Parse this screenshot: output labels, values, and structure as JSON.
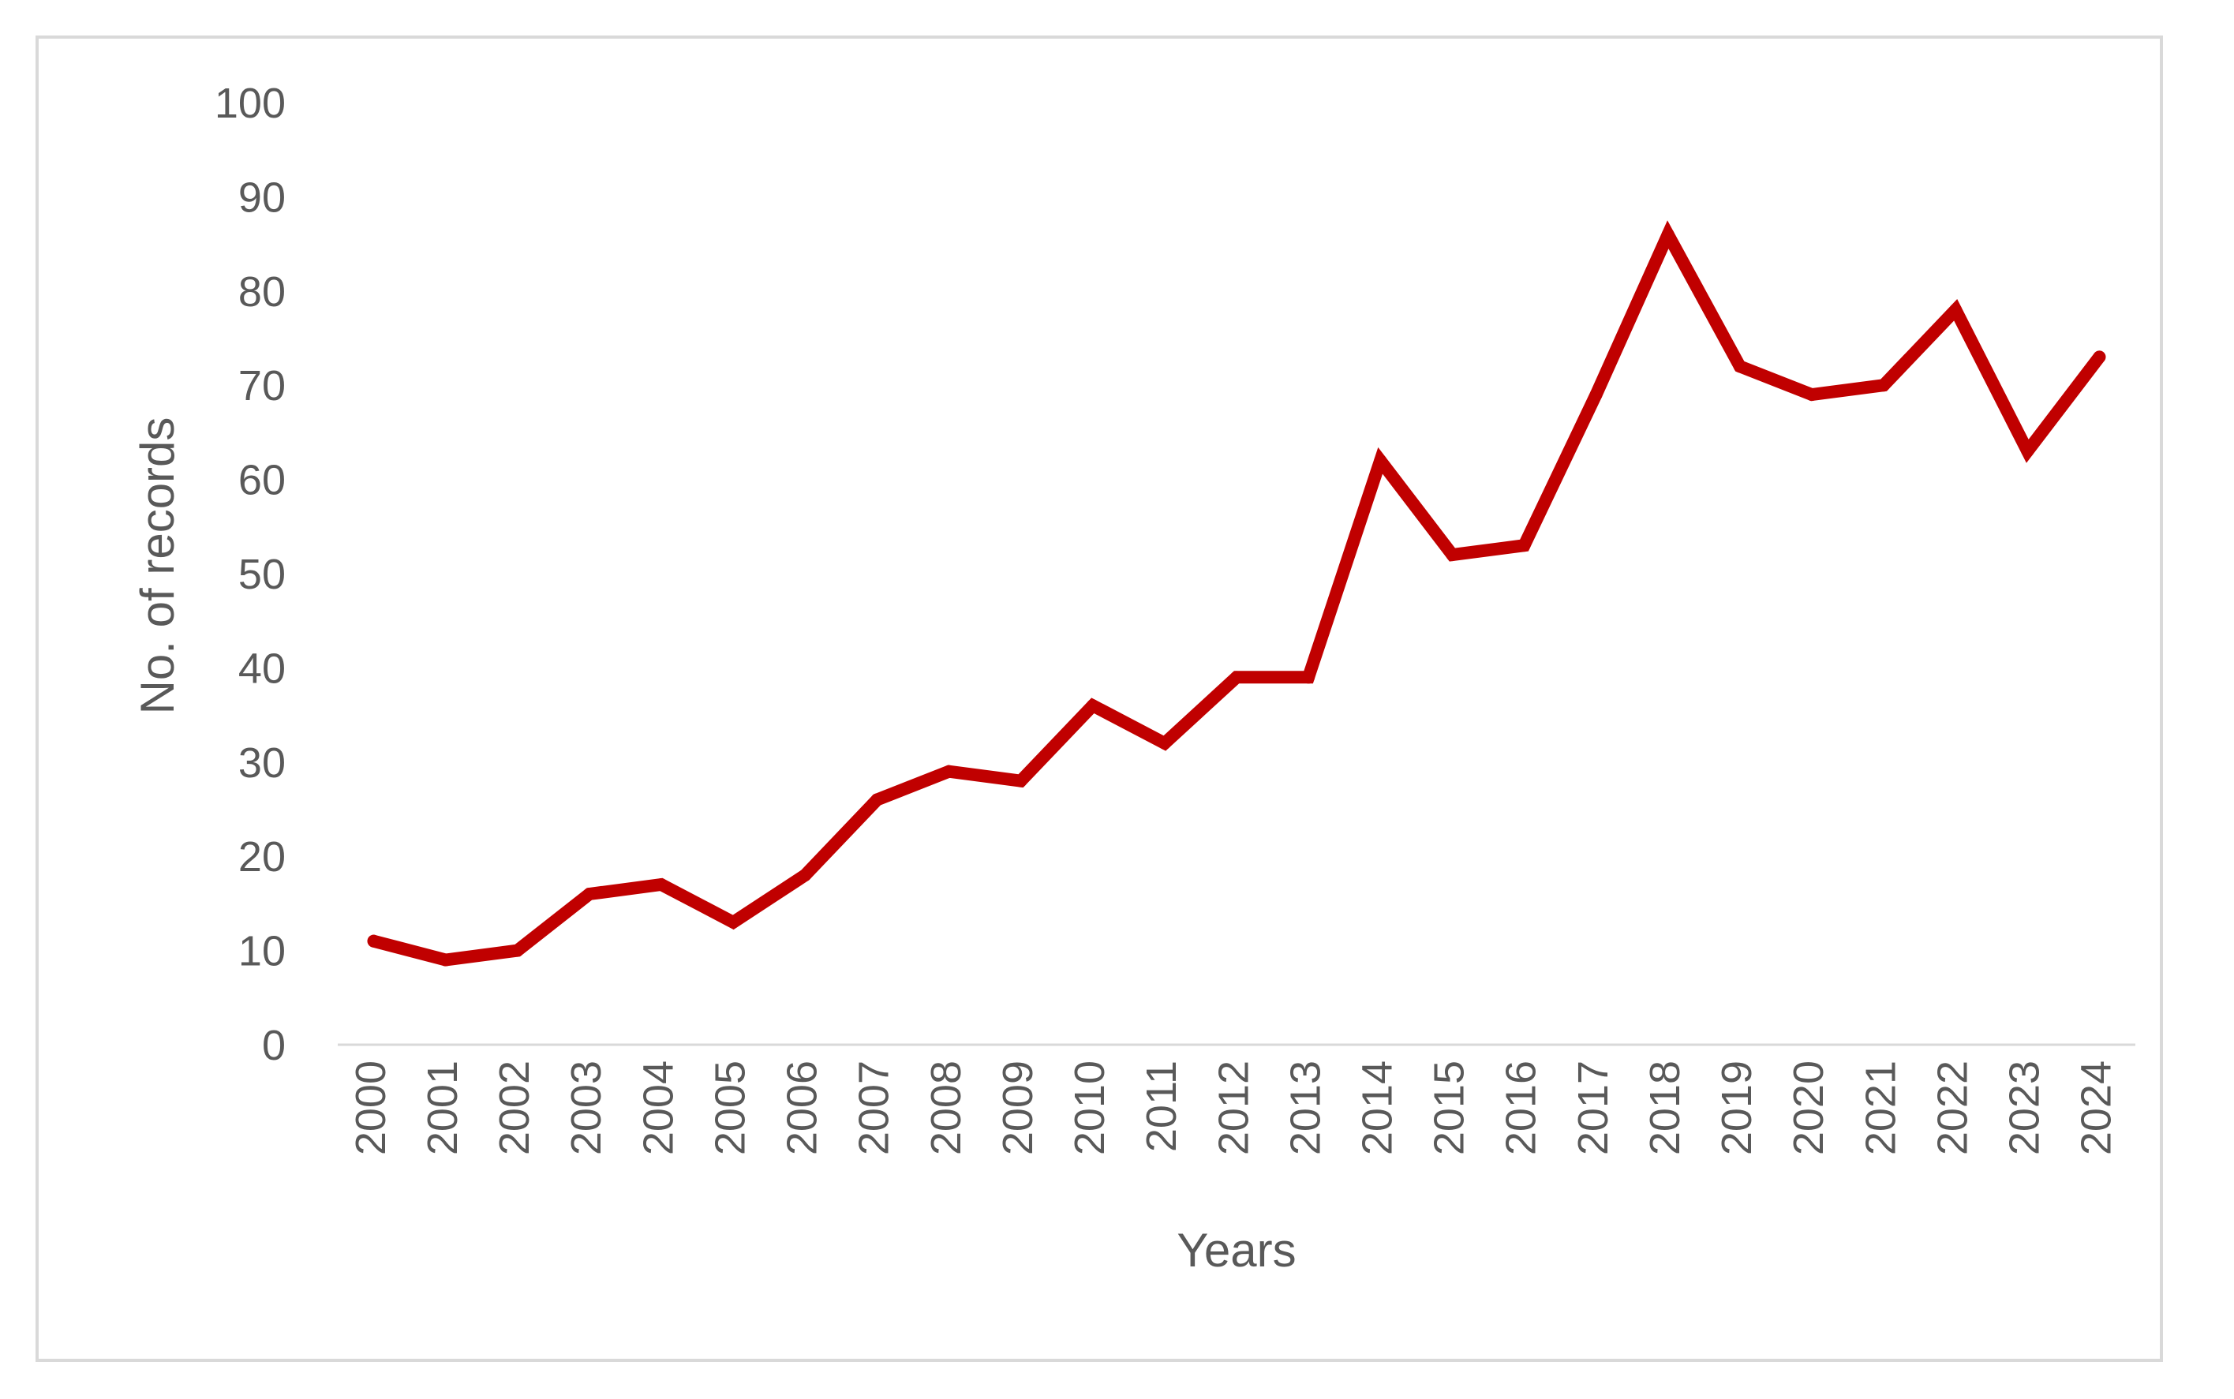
{
  "chart_data": {
    "type": "line",
    "title": "",
    "xlabel": "Years",
    "ylabel": "No. of records",
    "ylim": [
      0,
      100
    ],
    "yticks": [
      0,
      10,
      20,
      30,
      40,
      50,
      60,
      70,
      80,
      90,
      100
    ],
    "grid": false,
    "legend": "none",
    "line_color": "#c00000",
    "axis_color": "#d9d9d9",
    "text_color": "#595959",
    "x": [
      "2000",
      "2001",
      "2002",
      "2003",
      "2004",
      "2005",
      "2006",
      "2007",
      "2008",
      "2009",
      "2010",
      "2011",
      "2012",
      "2013",
      "2014",
      "2015",
      "2016",
      "2017",
      "2018",
      "2019",
      "2020",
      "2021",
      "2022",
      "2023",
      "2024"
    ],
    "series": [
      {
        "values": [
          11,
          9,
          10,
          16,
          17,
          13,
          18,
          26,
          29,
          28,
          36,
          32,
          39,
          39,
          62,
          52,
          53,
          69,
          86,
          72,
          69,
          70,
          78,
          63,
          73
        ]
      }
    ]
  }
}
